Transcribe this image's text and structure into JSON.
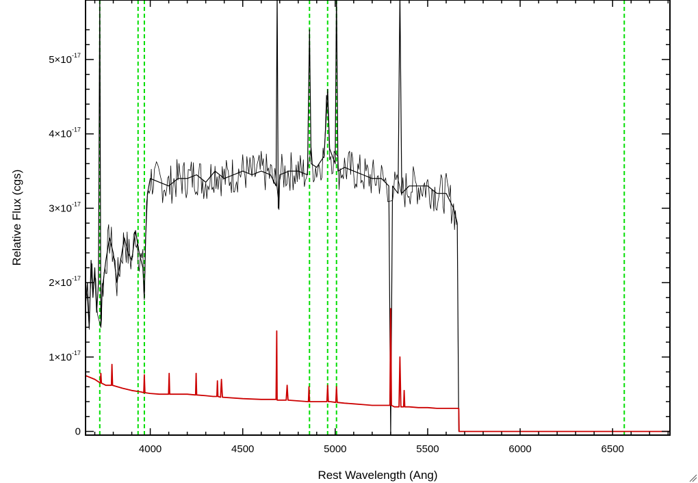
{
  "chart_data": {
    "type": "line",
    "title": "",
    "xlabel": "Rest Wavelength (Ang)",
    "ylabel": "Relative Flux (cgs)",
    "xlim": [
      3650,
      6810
    ],
    "ylim": [
      -0.05,
      5.8
    ],
    "y_unit_exponent": "-17",
    "x_ticks": [
      4000,
      4500,
      5000,
      5500,
      6000,
      6500
    ],
    "y_ticks": [
      {
        "value": 0,
        "mant": "0",
        "exp": ""
      },
      {
        "value": 1,
        "mant": "1",
        "exp": "-17"
      },
      {
        "value": 2,
        "mant": "2",
        "exp": "-17"
      },
      {
        "value": 3,
        "mant": "3",
        "exp": "-17"
      },
      {
        "value": 4,
        "mant": "4",
        "exp": "-17"
      },
      {
        "value": 5,
        "mant": "5",
        "exp": "-17"
      }
    ],
    "grid": false,
    "series": [
      {
        "color": "#000000",
        "x": [
          3650,
          3660,
          3670,
          3680,
          3690,
          3700,
          3710,
          3720,
          3727,
          3733,
          3740,
          3760,
          3780,
          3800,
          3820,
          3840,
          3860,
          3880,
          3900,
          3920,
          3940,
          3960,
          3968,
          3975,
          3985,
          4000,
          4050,
          4100,
          4150,
          4200,
          4250,
          4300,
          4350,
          4400,
          4450,
          4500,
          4550,
          4600,
          4650,
          4680,
          4686,
          4692,
          4700,
          4750,
          4800,
          4850,
          4861,
          4870,
          4900,
          4940,
          4959,
          4970,
          5000,
          5007,
          5015,
          5050,
          5100,
          5150,
          5200,
          5250,
          5290,
          5300,
          5310,
          5340,
          5350,
          5360,
          5400,
          5450,
          5500,
          5550,
          5600,
          5640,
          5660,
          5668,
          5672,
          5700,
          6000,
          6500,
          6810
        ],
        "values": [
          1.7,
          2.0,
          1.4,
          2.3,
          1.8,
          2.2,
          1.6,
          2.0,
          5.9,
          1.4,
          1.9,
          2.3,
          2.6,
          2.4,
          2.0,
          2.3,
          2.6,
          2.4,
          2.3,
          2.7,
          2.4,
          2.2,
          1.8,
          2.6,
          3.2,
          3.4,
          3.35,
          3.3,
          3.4,
          3.4,
          3.45,
          3.35,
          3.5,
          3.4,
          3.45,
          3.5,
          3.45,
          3.5,
          3.45,
          3.3,
          5.9,
          3.0,
          3.45,
          3.5,
          3.5,
          3.45,
          5.4,
          3.6,
          3.55,
          3.7,
          4.6,
          3.8,
          3.6,
          5.9,
          3.5,
          3.55,
          3.5,
          3.45,
          3.4,
          3.4,
          3.3,
          -0.05,
          3.3,
          3.2,
          5.9,
          3.2,
          3.3,
          3.3,
          3.3,
          3.2,
          3.2,
          3.0,
          2.8,
          0.0,
          0.0,
          0.0,
          0.0,
          0.0,
          0.0
        ]
      },
      {
        "color": "#cc0000",
        "x": [
          3650,
          3700,
          3730,
          3733,
          3736,
          3760,
          3790,
          3793,
          3796,
          3850,
          3900,
          3950,
          3965,
          3968,
          3971,
          4000,
          4050,
          4099,
          4102,
          4105,
          4150,
          4200,
          4245,
          4248,
          4251,
          4300,
          4340,
          4360,
          4363,
          4366,
          4380,
          4385,
          4390,
          4500,
          4600,
          4680,
          4684,
          4686,
          4690,
          4700,
          4735,
          4740,
          4745,
          4800,
          4855,
          4858,
          4861,
          4864,
          4900,
          4955,
          4959,
          4963,
          4975,
          5003,
          5007,
          5011,
          5050,
          5100,
          5150,
          5200,
          5250,
          5280,
          5296,
          5300,
          5304,
          5320,
          5345,
          5350,
          5355,
          5370,
          5373,
          5376,
          5400,
          5450,
          5500,
          5550,
          5600,
          5650,
          5668,
          5670,
          5672,
          5700,
          6000,
          6500,
          6810
        ],
        "values": [
          0.75,
          0.7,
          0.65,
          0.78,
          0.65,
          0.62,
          0.62,
          0.9,
          0.62,
          0.58,
          0.55,
          0.53,
          0.52,
          0.76,
          0.52,
          0.51,
          0.5,
          0.5,
          0.78,
          0.5,
          0.5,
          0.5,
          0.49,
          0.78,
          0.49,
          0.48,
          0.47,
          0.47,
          0.68,
          0.47,
          0.46,
          0.7,
          0.46,
          0.44,
          0.43,
          0.43,
          1.35,
          0.42,
          0.42,
          0.42,
          0.42,
          0.62,
          0.42,
          0.41,
          0.4,
          0.6,
          0.4,
          0.4,
          0.4,
          0.4,
          0.62,
          0.4,
          0.4,
          0.39,
          0.6,
          0.39,
          0.38,
          0.37,
          0.36,
          0.35,
          0.35,
          0.35,
          0.35,
          1.65,
          0.35,
          0.33,
          0.33,
          1.0,
          0.33,
          0.33,
          0.55,
          0.33,
          0.33,
          0.32,
          0.32,
          0.31,
          0.31,
          0.31,
          0.31,
          0.0,
          0.0,
          0.0,
          0.0,
          0.0,
          0.0
        ]
      }
    ],
    "vertical_lines": {
      "color": "#00dd00",
      "style": "dashed",
      "x": [
        3727,
        3934,
        3968,
        4861,
        4959,
        5007,
        6563
      ]
    }
  }
}
